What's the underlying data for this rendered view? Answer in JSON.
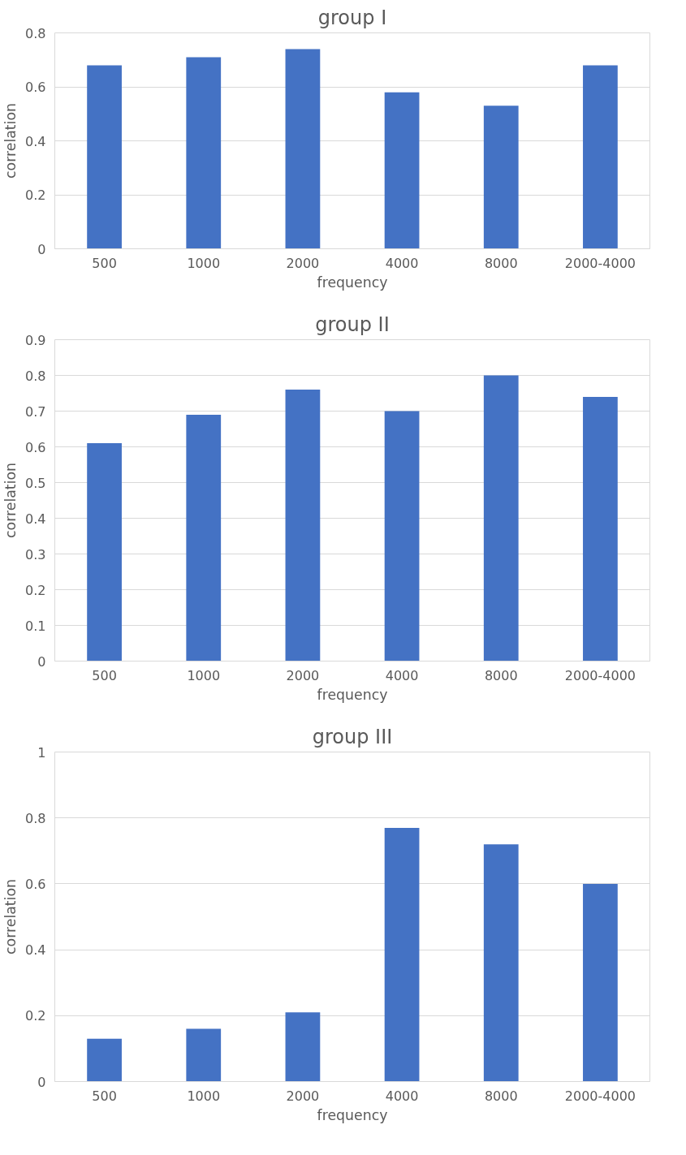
{
  "chart_data": [
    {
      "type": "bar",
      "title": "group I",
      "xlabel": "frequency",
      "ylabel": "correlation",
      "categories": [
        "500",
        "1000",
        "2000",
        "4000",
        "8000",
        "2000-4000"
      ],
      "values": [
        0.68,
        0.71,
        0.74,
        0.58,
        0.53,
        0.68
      ],
      "color": "#4472c4",
      "ylim": [
        0,
        0.8
      ],
      "yticks": [
        0,
        0.2,
        0.4,
        0.6,
        0.8
      ],
      "grid": "y"
    },
    {
      "type": "bar",
      "title": "group II",
      "xlabel": "frequency",
      "ylabel": "correlation",
      "categories": [
        "500",
        "1000",
        "2000",
        "4000",
        "8000",
        "2000-4000"
      ],
      "values": [
        0.61,
        0.69,
        0.76,
        0.7,
        0.8,
        0.74
      ],
      "color": "#4472c4",
      "ylim": [
        0,
        0.9
      ],
      "yticks": [
        0,
        0.1,
        0.2,
        0.3,
        0.4,
        0.5,
        0.6,
        0.7,
        0.8,
        0.9
      ],
      "grid": "y"
    },
    {
      "type": "bar",
      "title": "group III",
      "xlabel": "frequency",
      "ylabel": "correlation",
      "categories": [
        "500",
        "1000",
        "2000",
        "4000",
        "8000",
        "2000-4000"
      ],
      "values": [
        0.13,
        0.16,
        0.21,
        0.77,
        0.72,
        0.6
      ],
      "color": "#4472c4",
      "ylim": [
        0,
        1
      ],
      "yticks": [
        0,
        0.2,
        0.4,
        0.6,
        0.8,
        1
      ],
      "grid": "y"
    }
  ]
}
